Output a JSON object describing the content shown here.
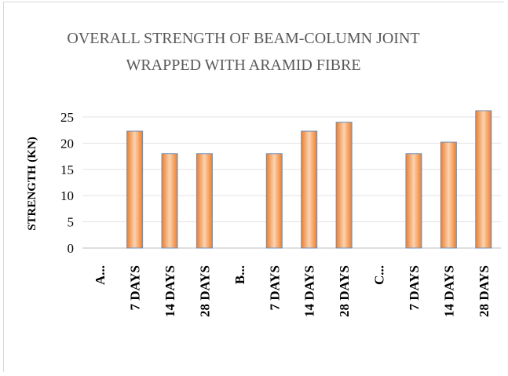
{
  "chart_data": {
    "type": "bar",
    "title_lines": [
      "OVERALL STRENGTH OF BEAM-COLUMN JOINT",
      "WRAPPED WITH ARAMID FIBRE"
    ],
    "ylabel": "STRENGTH (KN)",
    "xlabel": "",
    "ylim": [
      0,
      25
    ],
    "yticks": [
      0,
      5,
      10,
      15,
      20,
      25
    ],
    "grid": true,
    "legend": "none",
    "bar_color": "#ee7d2a",
    "bar_highlight": "#fbd3b0",
    "bar_edge": "#6f8fb8",
    "categories": [
      "A...",
      "7 DAYS",
      "14 DAYS",
      "28 DAYS",
      "B...",
      "7 DAYS",
      "14 DAYS",
      "28 DAYS",
      "C...",
      "7 DAYS",
      "14 DAYS",
      "28 DAYS"
    ],
    "values": [
      null,
      22.3,
      18,
      18,
      null,
      18,
      22.3,
      24,
      null,
      18,
      20.2,
      26.2
    ]
  }
}
